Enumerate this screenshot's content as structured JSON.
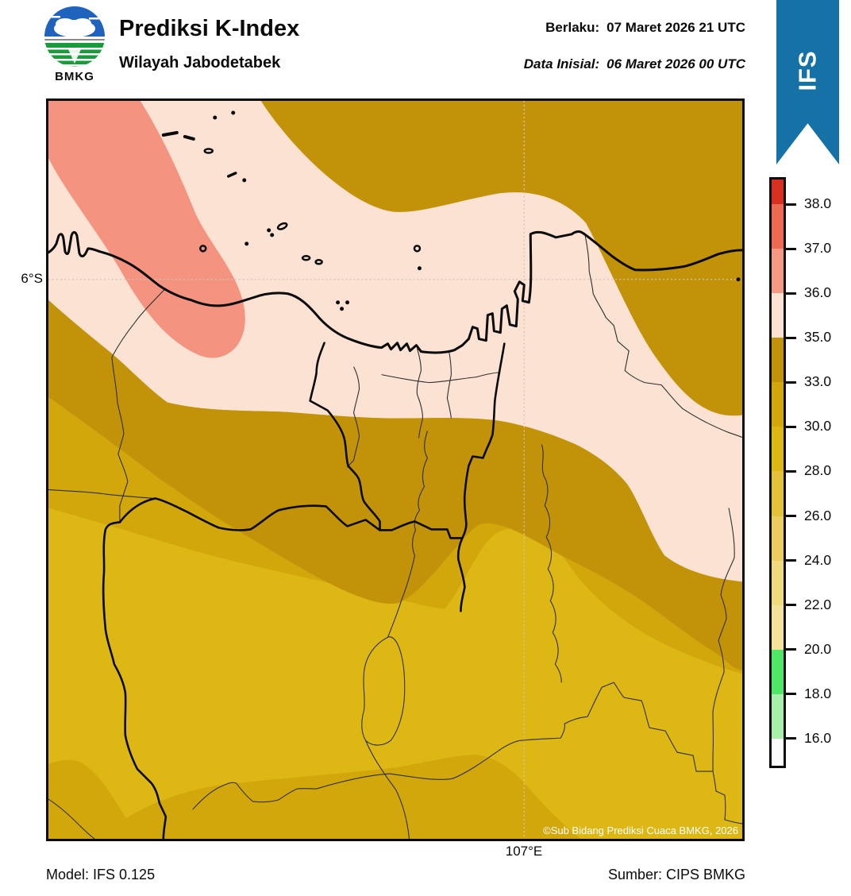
{
  "header": {
    "logo": {
      "text": "BMKG"
    },
    "title": "Prediksi K-Index",
    "subtitle": "Wilayah Jabodetabek",
    "valid": {
      "label": "Berlaku:",
      "value": "07 Maret 2026 21 UTC"
    },
    "initial": {
      "label": "Data Inisial:",
      "value": "06 Maret 2026 00 UTC"
    },
    "ribbon": "IFS"
  },
  "map": {
    "lat_tick": "6°S",
    "lon_tick": "107°E",
    "copyright": "©Sub Bidang Prediksi Cuaca BMKG, 2026"
  },
  "footer": {
    "model": "Model: IFS 0.125",
    "source": "Sumber: CIPS BMKG"
  },
  "colorbar": {
    "tick_labels": [
      "38.0",
      "37.0",
      "36.0",
      "35.0",
      "33.0",
      "30.0",
      "28.0",
      "26.0",
      "24.0",
      "22.0",
      "20.0",
      "18.0",
      "16.0"
    ],
    "segment_colors_top_to_bottom": [
      "#D7301F",
      "#EB6A51",
      "#F49883",
      "#FBE2D2",
      "#C29208",
      "#D1A70C",
      "#DDB714",
      "#E3C23A",
      "#E9CE5F",
      "#EFDA80",
      "#F3E39A",
      "#4EE766",
      "#A9EFAC",
      "#FCFCFC"
    ]
  },
  "chart_data": {
    "type": "heatmap",
    "title": "Prediksi K-Index",
    "region": "Wilayah Jabodetabek",
    "valid_time": "07 Maret 2026 21 UTC",
    "initial_time": "06 Maret 2026 00 UTC",
    "model": "IFS 0.125",
    "source": "CIPS BMKG",
    "legend_title": "K-Index",
    "legend_values": [
      38.0,
      37.0,
      36.0,
      35.0,
      33.0,
      30.0,
      28.0,
      26.0,
      24.0,
      22.0,
      20.0,
      18.0,
      16.0
    ],
    "gridlines": {
      "lat": "6°S",
      "lon": "107°E"
    },
    "map_regions": [
      {
        "k_index_range": "36-37",
        "color": "#F49883",
        "location": "northwest blob over sea and Tangerang coast"
      },
      {
        "k_index_range": "35-36",
        "color": "#FBE2D2",
        "location": "northern coastal band incl. Jakarta, channel running southeast"
      },
      {
        "k_index_range": "33-35",
        "color": "#C29208",
        "location": "northeast blob and central diagonal band"
      },
      {
        "k_index_range": "30-33",
        "color": "#D1A70C",
        "location": "band below central band and narrow band along southern edge"
      },
      {
        "k_index_range": "28-30",
        "color": "#DDB714",
        "location": "southern interior (Bogor area)"
      }
    ]
  },
  "colors": {
    "pink": "#FBE2D2",
    "salmon": "#F4937F",
    "gold_dark": "#C29208",
    "gold_mid": "#D1A70C",
    "gold_light": "#DDB714",
    "ribbon_blue": "#1571A6",
    "logo_blue": "#1F63BC",
    "logo_green": "#1B9A3C",
    "gridline": "#CFC5BA",
    "thin_line": "#2F2F2F",
    "border": "#0D0D0D"
  }
}
